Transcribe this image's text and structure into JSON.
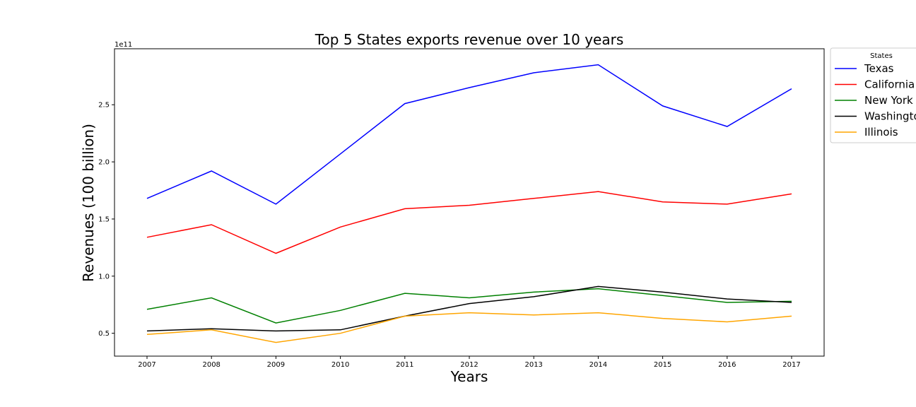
{
  "chart_data": {
    "type": "line",
    "title": "Top 5 States exports revenue over 10 years",
    "xlabel": "Years",
    "ylabel": "Revenues (100 billion)",
    "y_offset_text": "1e11",
    "x": [
      "2007",
      "2008",
      "2009",
      "2010",
      "2011",
      "2012",
      "2013",
      "2014",
      "2015",
      "2016",
      "2017"
    ],
    "yticks": [
      "0.5",
      "1.0",
      "1.5",
      "2.0",
      "2.5"
    ],
    "ylim": [
      0.3,
      2.99
    ],
    "legend_title": "States",
    "legend_position": "outside-top-right",
    "grid": false,
    "series": [
      {
        "name": "Texas",
        "color": "#0000ff",
        "values": [
          1.68,
          1.92,
          1.63,
          2.07,
          2.51,
          2.65,
          2.78,
          2.85,
          2.49,
          2.31,
          2.64
        ]
      },
      {
        "name": "California",
        "color": "#ff0000",
        "values": [
          1.34,
          1.45,
          1.2,
          1.43,
          1.59,
          1.62,
          1.68,
          1.74,
          1.65,
          1.63,
          1.72
        ]
      },
      {
        "name": "New York",
        "color": "#008000",
        "values": [
          0.71,
          0.81,
          0.59,
          0.7,
          0.85,
          0.81,
          0.86,
          0.89,
          0.83,
          0.77,
          0.78
        ]
      },
      {
        "name": "Washington",
        "color": "#000000",
        "values": [
          0.52,
          0.54,
          0.52,
          0.53,
          0.65,
          0.76,
          0.82,
          0.91,
          0.86,
          0.8,
          0.77
        ]
      },
      {
        "name": "Illinois",
        "color": "#ffa500",
        "values": [
          0.49,
          0.53,
          0.42,
          0.5,
          0.65,
          0.68,
          0.66,
          0.68,
          0.63,
          0.6,
          0.65
        ]
      }
    ]
  }
}
